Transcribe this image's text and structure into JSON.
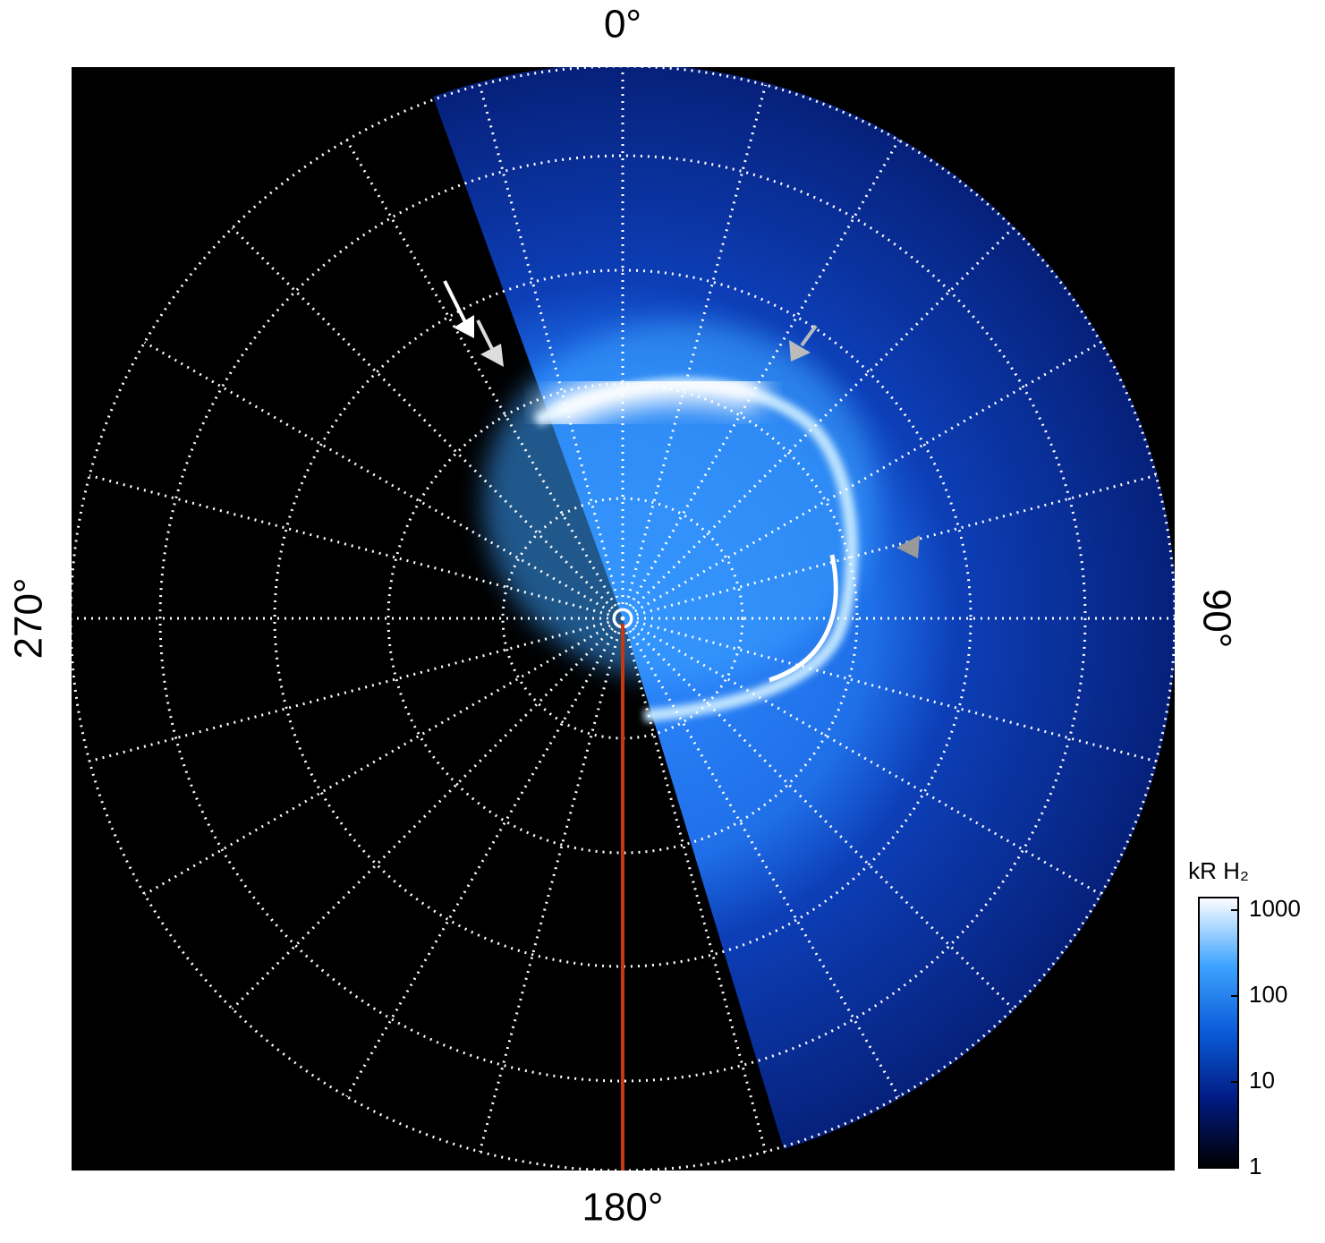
{
  "chart_data": {
    "type": "polar-image",
    "angle_ticks": [
      {
        "value": 0,
        "label": "0°"
      },
      {
        "value": 90,
        "label": "90°"
      },
      {
        "value": 180,
        "label": "180°"
      },
      {
        "value": 270,
        "label": "270°"
      }
    ],
    "colorbar": {
      "title": "kR H₂",
      "log": true,
      "ylim": [
        1,
        1400
      ],
      "yticks": [
        1,
        10,
        100,
        1000
      ],
      "colors": [
        "#000000",
        "#001a80",
        "#0a5ad8",
        "#3ea4ff",
        "#ffffff"
      ]
    }
  }
}
